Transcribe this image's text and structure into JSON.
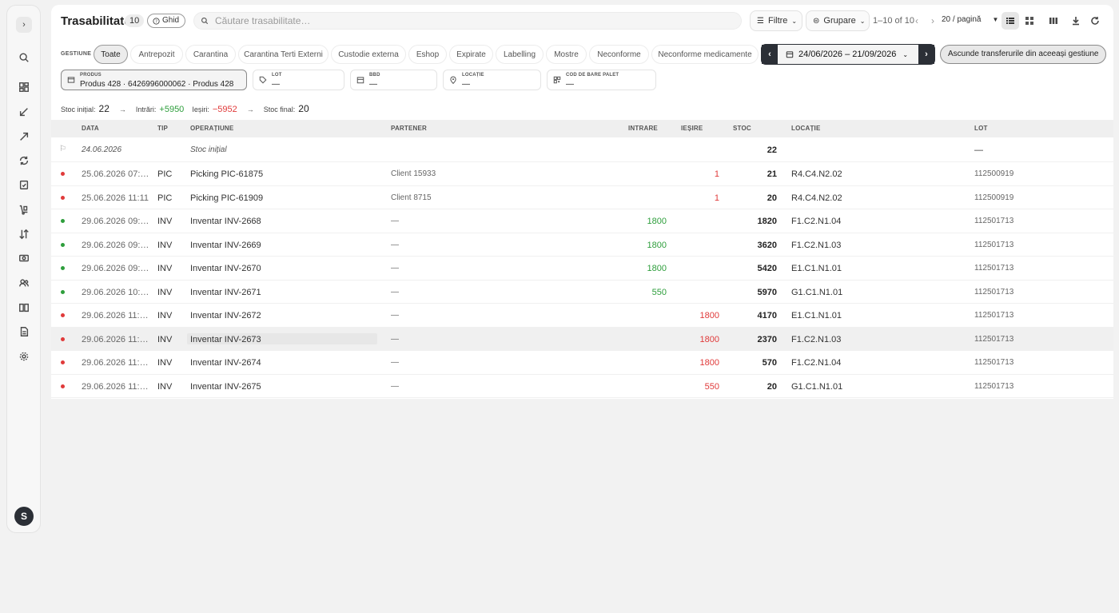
{
  "sidebar": {
    "toggle_icon": "chevron-right-icon",
    "icons": [
      "search-icon",
      "dashboard-icon",
      "arrow-in-icon",
      "arrow-out-icon",
      "refresh-icon",
      "clipboard-check-icon",
      "dolly-icon",
      "transfer-icon",
      "cash-icon",
      "users-icon",
      "book-icon",
      "document-icon",
      "gear-icon"
    ],
    "avatar": "S"
  },
  "header": {
    "title": "Trasabilitate",
    "count": "10",
    "ghid_label": "Ghid",
    "search_placeholder": "Căutare trasabilitate…",
    "filter_label": "Filtre",
    "group_label": "Grupare",
    "pagination": "1–10 of 10",
    "per_page": "20 / pagină"
  },
  "gestiune": {
    "label": "GESTIUNE",
    "chips": [
      "Toate",
      "Antrepozit",
      "Carantina",
      "Carantina Terti Externi",
      "Custodie externa",
      "Eshop",
      "Expirate",
      "Labelling",
      "Mostre",
      "Neconforme",
      "Neconforme medicamente"
    ],
    "active": "Toate",
    "date_range": "24/06/2026 – 21/09/2026",
    "hide_transfers_label": "Ascunde transferurile din aceeași gestiune"
  },
  "filters": {
    "produs": {
      "label": "PRODUS",
      "value": "Produs 428 · 6426996000062 · Produs 428"
    },
    "lot": {
      "label": "LOT",
      "value": "—"
    },
    "bbd": {
      "label": "BBD",
      "value": "—"
    },
    "locatie": {
      "label": "LOCAȚIE",
      "value": "—"
    },
    "cod_bare": {
      "label": "COD DE BARE PALET",
      "value": "—"
    }
  },
  "summary": {
    "initial_label": "Stoc inițial:",
    "initial": "22",
    "in_label": "Intrări:",
    "in": "+5950",
    "out_label": "Ieșiri:",
    "out": "−5952",
    "final_label": "Stoc final:",
    "final": "20"
  },
  "table": {
    "columns": [
      "DATA",
      "TIP",
      "OPERAȚIUNE",
      "PARTENER",
      "INTRARE",
      "IEȘIRE",
      "STOC",
      "LOCAȚIE",
      "LOT"
    ],
    "initial_row": {
      "date": "24.06.2026",
      "op": "Stoc inițial",
      "stoc": "22",
      "lot": "—"
    },
    "rows": [
      {
        "date": "25.06.2026 07:…",
        "tip": "PIC",
        "op": "Picking PIC-61875",
        "partner": "Client 15933",
        "in": "",
        "out": "1",
        "stoc": "21",
        "loc": "R4.C4.N2.02",
        "lot": "112500919",
        "status": "red"
      },
      {
        "date": "25.06.2026 11:11",
        "tip": "PIC",
        "op": "Picking PIC-61909",
        "partner": "Client 8715",
        "in": "",
        "out": "1",
        "stoc": "20",
        "loc": "R4.C4.N2.02",
        "lot": "112500919",
        "status": "red"
      },
      {
        "date": "29.06.2026 09:…",
        "tip": "INV",
        "op": "Inventar INV-2668",
        "partner": "—",
        "in": "1800",
        "out": "",
        "stoc": "1820",
        "loc": "F1.C2.N1.04",
        "lot": "112501713",
        "status": "green"
      },
      {
        "date": "29.06.2026 09:…",
        "tip": "INV",
        "op": "Inventar INV-2669",
        "partner": "—",
        "in": "1800",
        "out": "",
        "stoc": "3620",
        "loc": "F1.C2.N1.03",
        "lot": "112501713",
        "status": "green"
      },
      {
        "date": "29.06.2026 09:…",
        "tip": "INV",
        "op": "Inventar INV-2670",
        "partner": "—",
        "in": "1800",
        "out": "",
        "stoc": "5420",
        "loc": "E1.C1.N1.01",
        "lot": "112501713",
        "status": "green"
      },
      {
        "date": "29.06.2026 10:…",
        "tip": "INV",
        "op": "Inventar INV-2671",
        "partner": "—",
        "in": "550",
        "out": "",
        "stoc": "5970",
        "loc": "G1.C1.N1.01",
        "lot": "112501713",
        "status": "green"
      },
      {
        "date": "29.06.2026 11:…",
        "tip": "INV",
        "op": "Inventar INV-2672",
        "partner": "—",
        "in": "",
        "out": "1800",
        "stoc": "4170",
        "loc": "E1.C1.N1.01",
        "lot": "112501713",
        "status": "red"
      },
      {
        "date": "29.06.2026 11:…",
        "tip": "INV",
        "op": "Inventar INV-2673",
        "partner": "—",
        "in": "",
        "out": "1800",
        "stoc": "2370",
        "loc": "F1.C2.N1.03",
        "lot": "112501713",
        "status": "red"
      },
      {
        "date": "29.06.2026 11:…",
        "tip": "INV",
        "op": "Inventar INV-2674",
        "partner": "—",
        "in": "",
        "out": "1800",
        "stoc": "570",
        "loc": "F1.C2.N1.04",
        "lot": "112501713",
        "status": "red"
      },
      {
        "date": "29.06.2026 11:…",
        "tip": "INV",
        "op": "Inventar INV-2675",
        "partner": "—",
        "in": "",
        "out": "550",
        "stoc": "20",
        "loc": "G1.C1.N1.01",
        "lot": "112501713",
        "status": "red"
      }
    ]
  },
  "colors": {
    "green": "#2e9e3c",
    "red": "#e03a3a",
    "dark": "#2b2f36"
  }
}
